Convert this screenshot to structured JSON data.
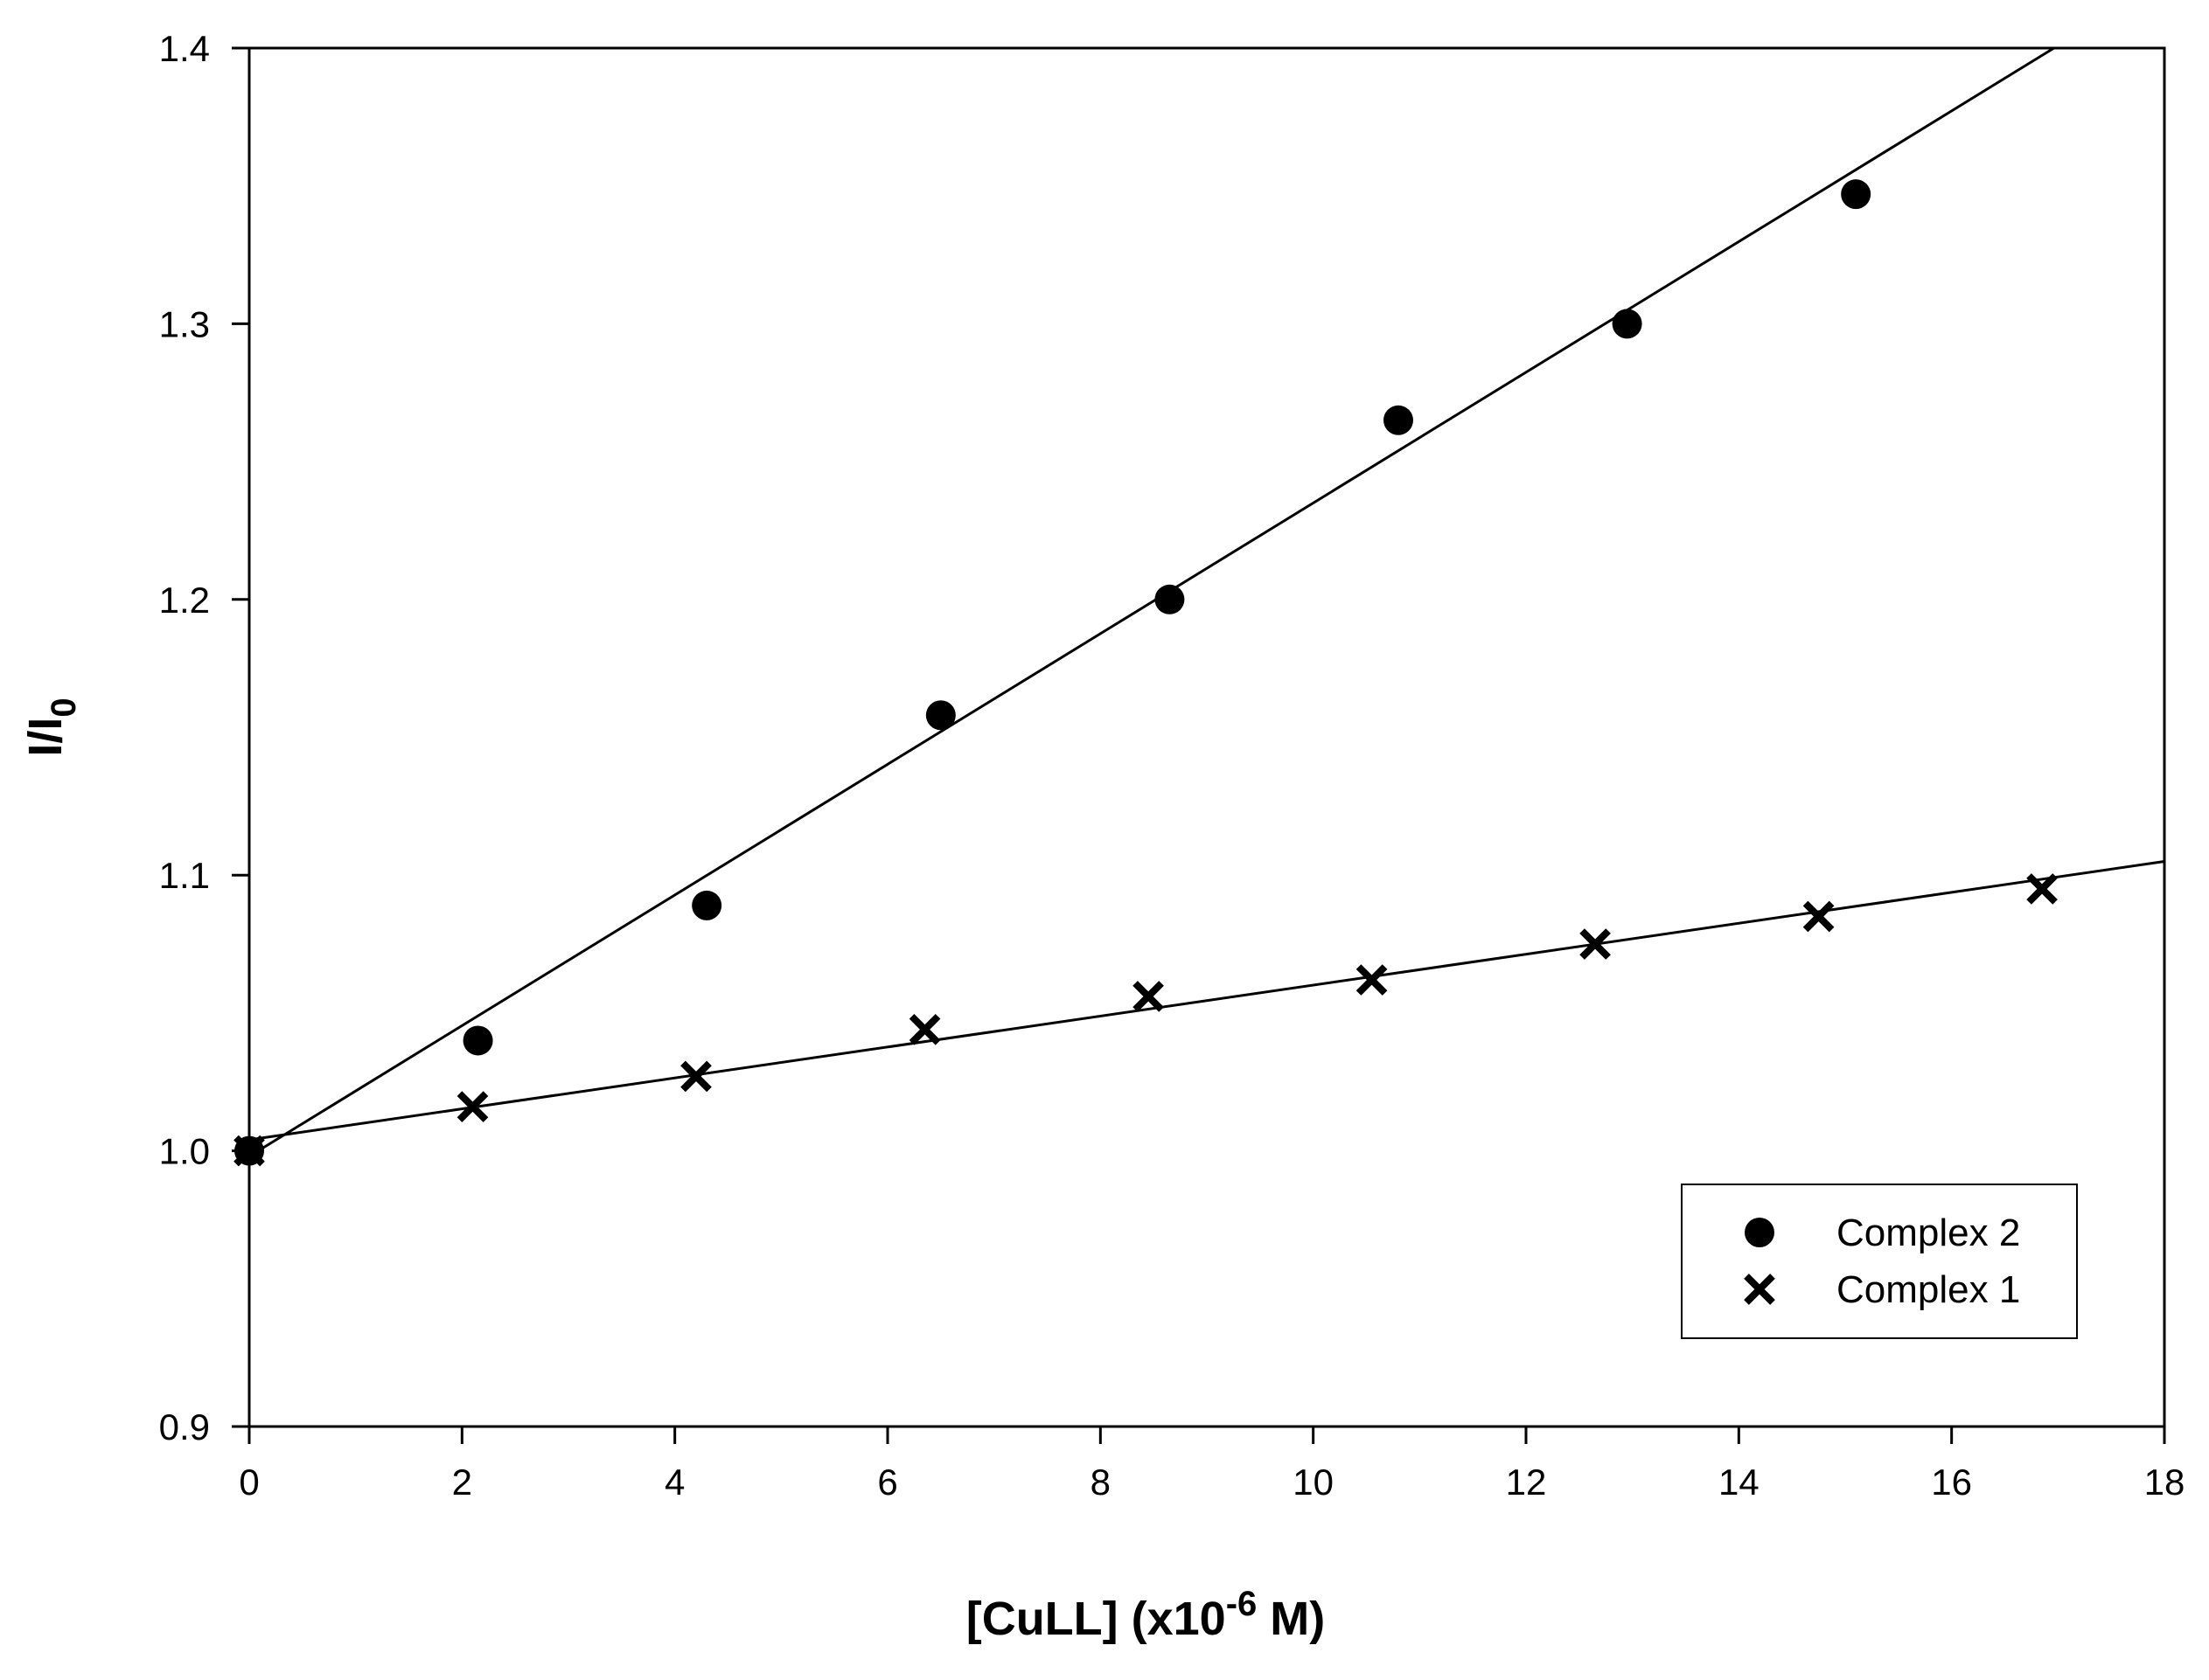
{
  "chart_data": {
    "type": "scatter",
    "title": "",
    "xlabel": {
      "main": "[CuLL] (x10",
      "sup": "-6",
      "tail": " M)"
    },
    "ylabel": {
      "main": "I/I",
      "sub": "0"
    },
    "xlim": [
      0,
      18
    ],
    "ylim": [
      0.9,
      1.4
    ],
    "x_ticks": [
      0,
      2,
      4,
      6,
      8,
      10,
      12,
      14,
      16,
      18
    ],
    "x_tick_labels": [
      "0",
      "2",
      "4",
      "6",
      "8",
      "10",
      "12",
      "14",
      "16",
      "18"
    ],
    "y_ticks": [
      0.9,
      1.0,
      1.1,
      1.2,
      1.3,
      1.4
    ],
    "y_tick_labels": [
      "0.9",
      "1.0",
      "1.1",
      "1.2",
      "1.3",
      "1.4"
    ],
    "grid": false,
    "legend_position": "bottom-right",
    "series": [
      {
        "name": "Complex 2",
        "marker": "circle",
        "x": [
          0,
          2.15,
          4.3,
          6.5,
          8.65,
          10.8,
          12.95,
          15.1
        ],
        "y": [
          1.0,
          1.04,
          1.089,
          1.158,
          1.2,
          1.265,
          1.3,
          1.347
        ],
        "fit": {
          "slope": 0.0237,
          "intercept": 0.998
        }
      },
      {
        "name": "Complex 1",
        "marker": "x",
        "x": [
          0,
          2.1,
          4.2,
          6.35,
          8.45,
          10.55,
          12.65,
          14.75,
          16.85
        ],
        "y": [
          1.0,
          1.016,
          1.027,
          1.044,
          1.056,
          1.062,
          1.075,
          1.085,
          1.095
        ],
        "fit": {
          "slope": 0.00561,
          "intercept": 1.004
        }
      }
    ],
    "legend": [
      {
        "label": "Complex 2",
        "marker": "circle"
      },
      {
        "label": "Complex 1",
        "marker": "x"
      }
    ]
  }
}
